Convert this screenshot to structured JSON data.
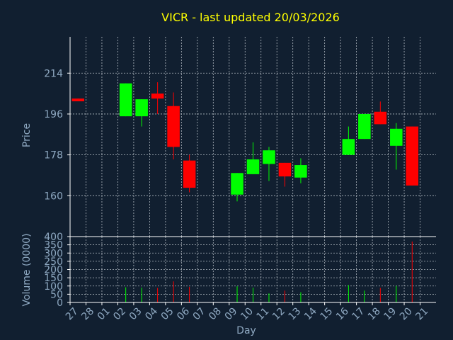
{
  "title": "VICR - last updated 20/03/2026",
  "colors": {
    "background": "#111f30",
    "title": "#ffff00",
    "text": "#8fa9c2",
    "axis": "#ffffff",
    "grid": "#b0b8c0",
    "up": "#00ff00",
    "down": "#ff0000"
  },
  "chart_data": [
    {
      "type": "candlestick",
      "title": "VICR - last updated 20/03/2026",
      "ylabel": "Price",
      "xlabel": "",
      "ylim": [
        142,
        230
      ],
      "yticks": [
        "160",
        "178",
        "196",
        "214"
      ],
      "x": [
        "27",
        "28",
        "01",
        "02",
        "03",
        "04",
        "05",
        "06",
        "07",
        "08",
        "09",
        "10",
        "11",
        "12",
        "13",
        "14",
        "15",
        "16",
        "17",
        "18",
        "19",
        "20",
        "21"
      ],
      "grid": true,
      "candles": [
        {
          "x": "27",
          "open": 202.8,
          "close": 201.6,
          "high": 202.8,
          "low": 201.6
        },
        {
          "x": "02",
          "open": 195.0,
          "close": 209.5,
          "high": 209.5,
          "low": 195.0
        },
        {
          "x": "03",
          "open": 195.0,
          "close": 202.5,
          "high": 202.5,
          "low": 190.5
        },
        {
          "x": "04",
          "open": 205.0,
          "close": 202.8,
          "high": 210.0,
          "low": 196.0
        },
        {
          "x": "05",
          "open": 199.5,
          "close": 181.5,
          "high": 205.5,
          "low": 176.0
        },
        {
          "x": "06",
          "open": 175.5,
          "close": 163.5,
          "high": 178.0,
          "low": 161.5
        },
        {
          "x": "09",
          "open": 160.5,
          "close": 170.0,
          "high": 170.0,
          "low": 157.5
        },
        {
          "x": "10",
          "open": 169.5,
          "close": 176.0,
          "high": 183.5,
          "low": 169.5
        },
        {
          "x": "11",
          "open": 174.0,
          "close": 180.0,
          "high": 181.5,
          "low": 166.5
        },
        {
          "x": "12",
          "open": 174.5,
          "close": 168.5,
          "high": 174.5,
          "low": 164.0
        },
        {
          "x": "13",
          "open": 168.0,
          "close": 173.5,
          "high": 176.5,
          "low": 165.5
        },
        {
          "x": "16",
          "open": 178.0,
          "close": 185.0,
          "high": 190.5,
          "low": 178.0
        },
        {
          "x": "17",
          "open": 185.0,
          "close": 196.0,
          "high": 196.0,
          "low": 185.0
        },
        {
          "x": "18",
          "open": 197.0,
          "close": 191.5,
          "high": 201.5,
          "low": 191.5
        },
        {
          "x": "19",
          "open": 182.0,
          "close": 189.5,
          "high": 192.0,
          "low": 171.5
        },
        {
          "x": "20",
          "open": 190.5,
          "close": 164.5,
          "high": 190.5,
          "low": 164.5
        }
      ]
    },
    {
      "type": "bar",
      "ylabel": "Volume (0000)",
      "xlabel": "Day",
      "ylim": [
        0,
        400
      ],
      "yticks": [
        "0",
        "50",
        "100",
        "150",
        "200",
        "250",
        "300",
        "350",
        "400"
      ],
      "x": [
        "27",
        "28",
        "01",
        "02",
        "03",
        "04",
        "05",
        "06",
        "07",
        "08",
        "09",
        "10",
        "11",
        "12",
        "13",
        "14",
        "15",
        "16",
        "17",
        "18",
        "19",
        "20",
        "21"
      ],
      "grid": true,
      "bars": [
        {
          "x": "02",
          "value": 92,
          "direction": "up"
        },
        {
          "x": "03",
          "value": 90,
          "direction": "up"
        },
        {
          "x": "04",
          "value": 88,
          "direction": "down"
        },
        {
          "x": "05",
          "value": 128,
          "direction": "down"
        },
        {
          "x": "06",
          "value": 95,
          "direction": "down"
        },
        {
          "x": "09",
          "value": 98,
          "direction": "up"
        },
        {
          "x": "10",
          "value": 90,
          "direction": "up"
        },
        {
          "x": "11",
          "value": 55,
          "direction": "up"
        },
        {
          "x": "12",
          "value": 72,
          "direction": "down"
        },
        {
          "x": "13",
          "value": 62,
          "direction": "up"
        },
        {
          "x": "16",
          "value": 105,
          "direction": "up"
        },
        {
          "x": "17",
          "value": 72,
          "direction": "up"
        },
        {
          "x": "18",
          "value": 88,
          "direction": "down"
        },
        {
          "x": "19",
          "value": 100,
          "direction": "up"
        },
        {
          "x": "20",
          "value": 370,
          "direction": "down"
        }
      ]
    }
  ]
}
